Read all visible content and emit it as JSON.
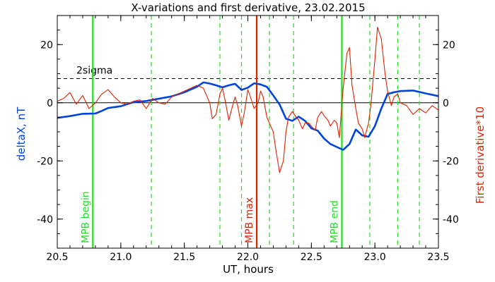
{
  "chart_data": {
    "type": "line",
    "title": "X-variations and first derivative, 23.02.2015",
    "xlabel": "UT, hours",
    "ylabel_left": "deltaX, nT",
    "ylabel_right": "First derivative*10",
    "xlim": [
      20.5,
      23.5
    ],
    "ylim": [
      -50,
      30
    ],
    "x_ticks": [
      "20.5",
      "21.0",
      "21.5",
      "22.0",
      "22.5",
      "23.0",
      "23.5"
    ],
    "y_ticks_left": [
      "20",
      "0",
      "-20",
      "-40"
    ],
    "y_ticks_right": [
      "20",
      "0",
      "-20",
      "-40"
    ],
    "sigma_label": "2sigma",
    "sigma_level": 8.3,
    "series": [
      {
        "name": "deltaX, nT",
        "color": "#0044dd",
        "x": [
          20.5,
          20.6,
          20.7,
          20.8,
          20.85,
          20.9,
          21.0,
          21.1,
          21.2,
          21.3,
          21.4,
          21.5,
          21.6,
          21.65,
          21.7,
          21.75,
          21.8,
          21.85,
          21.9,
          21.95,
          22.0,
          22.05,
          22.1,
          22.15,
          22.2,
          22.25,
          22.3,
          22.35,
          22.4,
          22.45,
          22.5,
          22.55,
          22.6,
          22.65,
          22.7,
          22.75,
          22.8,
          22.85,
          22.9,
          22.95,
          23.0,
          23.05,
          23.1,
          23.15,
          23.2,
          23.3,
          23.4,
          23.5
        ],
        "y": [
          -5.2,
          -4.6,
          -3.8,
          -3.7,
          -2.8,
          -1.8,
          -1.2,
          0.2,
          0.6,
          1.4,
          2.2,
          3.6,
          5.5,
          7.0,
          6.6,
          6.0,
          5.3,
          6.0,
          6.5,
          4.4,
          5.2,
          6.7,
          6.3,
          5.5,
          2.5,
          -0.6,
          -5.5,
          -6.2,
          -4.8,
          -6.2,
          -8.8,
          -9.6,
          -12.3,
          -14.2,
          -15.2,
          -16.2,
          -14.2,
          -9.2,
          -11.2,
          -11.7,
          -8.0,
          -2.0,
          3.0,
          3.6,
          4.0,
          4.2,
          3.2,
          2.3
        ]
      },
      {
        "name": "First derivative*10",
        "color": "#dd2200",
        "x": [
          20.5,
          20.55,
          20.6,
          20.65,
          20.7,
          20.75,
          20.8,
          20.85,
          20.9,
          20.95,
          21.0,
          21.05,
          21.1,
          21.15,
          21.2,
          21.25,
          21.3,
          21.35,
          21.4,
          21.45,
          21.5,
          21.55,
          21.6,
          21.65,
          21.7,
          21.72,
          21.75,
          21.78,
          21.8,
          21.82,
          21.85,
          21.88,
          21.9,
          21.92,
          21.95,
          21.97,
          22.0,
          22.02,
          22.05,
          22.08,
          22.1,
          22.12,
          22.15,
          22.18,
          22.2,
          22.22,
          22.25,
          22.28,
          22.3,
          22.32,
          22.35,
          22.38,
          22.4,
          22.43,
          22.45,
          22.48,
          22.5,
          22.53,
          22.55,
          22.58,
          22.6,
          22.63,
          22.65,
          22.68,
          22.7,
          22.72,
          22.75,
          22.78,
          22.8,
          22.82,
          22.85,
          22.87,
          22.9,
          22.92,
          22.95,
          22.97,
          23.0,
          23.02,
          23.05,
          23.08,
          23.1,
          23.13,
          23.15,
          23.18,
          23.2,
          23.25,
          23.3,
          23.35,
          23.4,
          23.45,
          23.5
        ],
        "y": [
          0.5,
          1.5,
          3.5,
          -0.5,
          2.5,
          -2.0,
          0.0,
          3.0,
          4.5,
          2.0,
          0.0,
          -0.5,
          0.5,
          1.0,
          -2.0,
          1.5,
          0.0,
          -0.5,
          2.0,
          3.0,
          4.0,
          5.0,
          6.0,
          5.0,
          0.0,
          -5.5,
          -4.0,
          3.0,
          5.0,
          1.0,
          -6.0,
          -1.0,
          2.0,
          -1.0,
          -8.0,
          -4.0,
          4.5,
          2.0,
          -2.0,
          0.0,
          4.0,
          2.0,
          -5.0,
          -8.0,
          -10.0,
          -16.0,
          -24.0,
          -20.0,
          -10.0,
          -5.0,
          -3.0,
          -5.0,
          -6.0,
          -9.0,
          -7.0,
          -7.0,
          -8.0,
          -9.5,
          -5.0,
          -3.0,
          -4.5,
          -6.0,
          -8.0,
          -6.0,
          -7.0,
          -12.0,
          5.0,
          17.0,
          19.0,
          6.0,
          -2.0,
          -7.0,
          -9.0,
          -12.0,
          -7.0,
          0.0,
          15.0,
          26.0,
          22.0,
          10.0,
          4.0,
          -1.0,
          2.0,
          3.0,
          0.0,
          -1.0,
          -4.0,
          -2.0,
          -3.5,
          -1.0,
          -2.5
        ]
      }
    ],
    "vertical_lines": [
      {
        "x": 20.78,
        "label": "MPB begin",
        "color": "#22dd22",
        "style": "solid"
      },
      {
        "x": 22.07,
        "label": "MPB max",
        "color": "#dd2200",
        "style": "solid"
      },
      {
        "x": 22.74,
        "label": "MPB end",
        "color": "#22dd22",
        "style": "solid"
      },
      {
        "x": 21.24,
        "label": "",
        "color": "#22dd22",
        "style": "dashed"
      },
      {
        "x": 21.78,
        "label": "",
        "color": "#22dd22",
        "style": "dashed"
      },
      {
        "x": 21.95,
        "label": "",
        "color": "#22dd22",
        "style": "dashed"
      },
      {
        "x": 22.17,
        "label": "",
        "color": "#22dd22",
        "style": "dashed"
      },
      {
        "x": 22.36,
        "label": "",
        "color": "#22dd22",
        "style": "dashed"
      },
      {
        "x": 22.96,
        "label": "",
        "color": "#22dd22",
        "style": "dashed"
      },
      {
        "x": 23.18,
        "label": "",
        "color": "#22dd22",
        "style": "dashed"
      },
      {
        "x": 23.35,
        "label": "",
        "color": "#22dd22",
        "style": "dashed"
      }
    ]
  }
}
